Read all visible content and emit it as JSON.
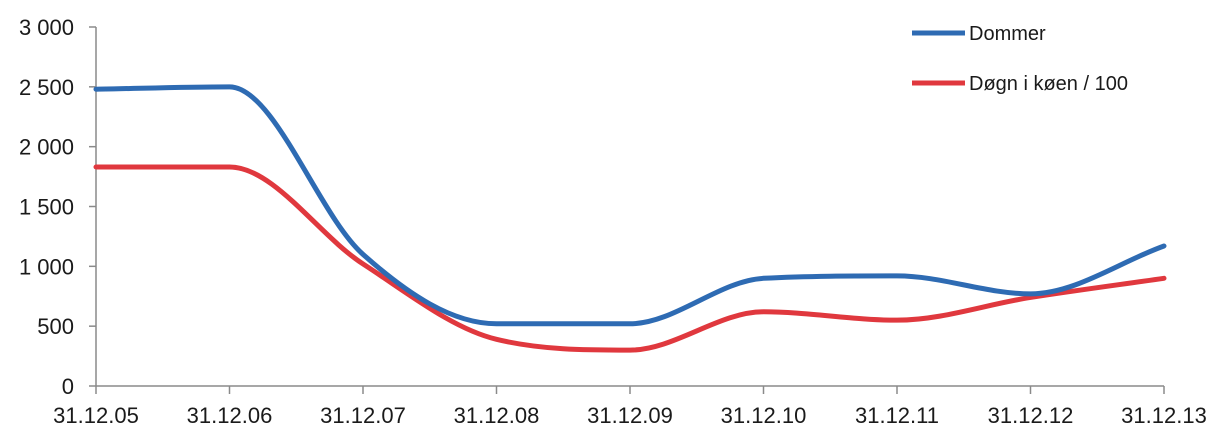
{
  "chart_data": {
    "type": "line",
    "title": "",
    "xlabel": "",
    "ylabel": "",
    "x": [
      "31.12.05",
      "31.12.06",
      "31.12.07",
      "31.12.08",
      "31.12.09",
      "31.12.10",
      "31.12.11",
      "31.12.12",
      "31.12.13"
    ],
    "ylim": [
      0,
      3000
    ],
    "yticks": [
      "0",
      "500",
      "1 000",
      "1 500",
      "2 000",
      "2 500",
      "3 000"
    ],
    "ytick_values": [
      0,
      500,
      1000,
      1500,
      2000,
      2500,
      3000
    ],
    "grid": false,
    "legend_position": "top-right",
    "smooth": true,
    "series": [
      {
        "name": "Dommer",
        "color": "#2e6bb3",
        "values": [
          2480,
          2500,
          1100,
          520,
          520,
          900,
          920,
          770,
          1170
        ]
      },
      {
        "name": "Døgn i køen / 100",
        "color": "#e0383e",
        "values": [
          1830,
          1830,
          1020,
          390,
          300,
          620,
          550,
          740,
          900
        ]
      }
    ]
  }
}
